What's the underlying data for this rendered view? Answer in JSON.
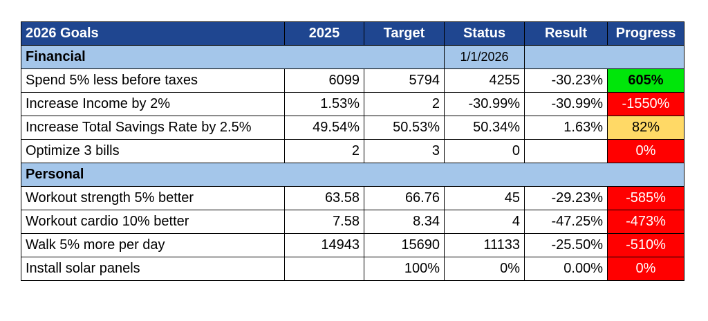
{
  "header": {
    "title": "2026 Goals",
    "col_2025": "2025",
    "col_target": "Target",
    "col_status": "Status",
    "col_result": "Result",
    "col_progress": "Progress"
  },
  "sections": {
    "financial": {
      "label": "Financial",
      "date": "1/1/2026"
    },
    "personal": {
      "label": "Personal"
    }
  },
  "financial_rows": [
    {
      "goal": "Spend 5% less before taxes",
      "y2025": "6099",
      "target": "5794",
      "status": "4255",
      "result": "-30.23%",
      "progress": "605%",
      "progress_color": "#00e60a"
    },
    {
      "goal": "Increase Income by 2%",
      "y2025": "1.53%",
      "target": "2",
      "status": "-30.99%",
      "result": "-30.99%",
      "progress": "-1550%",
      "progress_color": "#ff0000"
    },
    {
      "goal": "Increase Total Savings Rate by 2.5%",
      "y2025": "49.54%",
      "target": "50.53%",
      "status": "50.34%",
      "result": "1.63%",
      "progress": "82%",
      "progress_color": "#ffd966"
    },
    {
      "goal": "Optimize 3 bills",
      "y2025": "2",
      "target": "3",
      "status": "0",
      "result": "",
      "progress": "0%",
      "progress_color": "#ff0000"
    }
  ],
  "personal_rows": [
    {
      "goal": "Workout strength 5% better",
      "y2025": "63.58",
      "target": "66.76",
      "status": "45",
      "result": "-29.23%",
      "progress": "-585%",
      "progress_color": "#ff0000"
    },
    {
      "goal": "Workout cardio 10% better",
      "y2025": "7.58",
      "target": "8.34",
      "status": "4",
      "result": "-47.25%",
      "progress": "-473%",
      "progress_color": "#ff0000"
    },
    {
      "goal": "Walk 5% more per day",
      "y2025": "14943",
      "target": "15690",
      "status": "11133",
      "result": "-25.50%",
      "progress": "-510%",
      "progress_color": "#ff0000"
    },
    {
      "goal": "Install solar panels",
      "y2025": "",
      "target": "100%",
      "status": "0%",
      "result": "0.00%",
      "progress": "0%",
      "progress_color": "#ff0000"
    }
  ]
}
